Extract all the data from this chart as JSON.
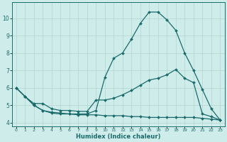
{
  "xlabel": "Humidex (Indice chaleur)",
  "bg_color": "#ceecea",
  "line_color": "#1a6b6b",
  "grid_color": "#b8d8d4",
  "xlim": [
    -0.5,
    23.5
  ],
  "ylim": [
    3.8,
    10.9
  ],
  "xticks": [
    0,
    1,
    2,
    3,
    4,
    5,
    6,
    7,
    8,
    9,
    10,
    11,
    12,
    13,
    14,
    15,
    16,
    17,
    18,
    19,
    20,
    21,
    22,
    23
  ],
  "yticks": [
    4,
    5,
    6,
    7,
    8,
    9,
    10
  ],
  "series1_x": [
    0,
    1,
    2,
    3,
    4,
    5,
    6,
    7,
    8,
    9,
    10,
    11,
    12,
    13,
    14,
    15,
    16,
    17,
    18,
    19,
    20,
    21,
    22,
    23
  ],
  "series1_y": [
    6.0,
    5.5,
    5.0,
    4.7,
    4.6,
    4.55,
    4.5,
    4.5,
    4.5,
    4.7,
    6.6,
    7.7,
    8.0,
    8.8,
    9.7,
    10.35,
    10.35,
    9.9,
    9.3,
    8.0,
    7.0,
    5.9,
    4.8,
    4.15
  ],
  "series2_x": [
    0,
    1,
    2,
    3,
    4,
    5,
    6,
    7,
    8,
    9,
    10,
    11,
    12,
    13,
    14,
    15,
    16,
    17,
    18,
    19,
    20,
    21,
    22,
    23
  ],
  "series2_y": [
    6.0,
    5.5,
    5.1,
    5.1,
    4.8,
    4.7,
    4.7,
    4.65,
    4.65,
    5.3,
    5.3,
    5.4,
    5.6,
    5.85,
    6.15,
    6.45,
    6.55,
    6.75,
    7.05,
    6.55,
    6.3,
    4.5,
    4.35,
    4.15
  ],
  "series3_x": [
    0,
    1,
    2,
    3,
    4,
    5,
    6,
    7,
    8,
    9,
    10,
    11,
    12,
    13,
    14,
    15,
    16,
    17,
    18,
    19,
    20,
    21,
    22,
    23
  ],
  "series3_y": [
    6.0,
    5.5,
    5.0,
    4.7,
    4.55,
    4.5,
    4.5,
    4.45,
    4.45,
    4.45,
    4.4,
    4.4,
    4.4,
    4.35,
    4.35,
    4.3,
    4.3,
    4.3,
    4.3,
    4.3,
    4.3,
    4.25,
    4.2,
    4.15
  ]
}
